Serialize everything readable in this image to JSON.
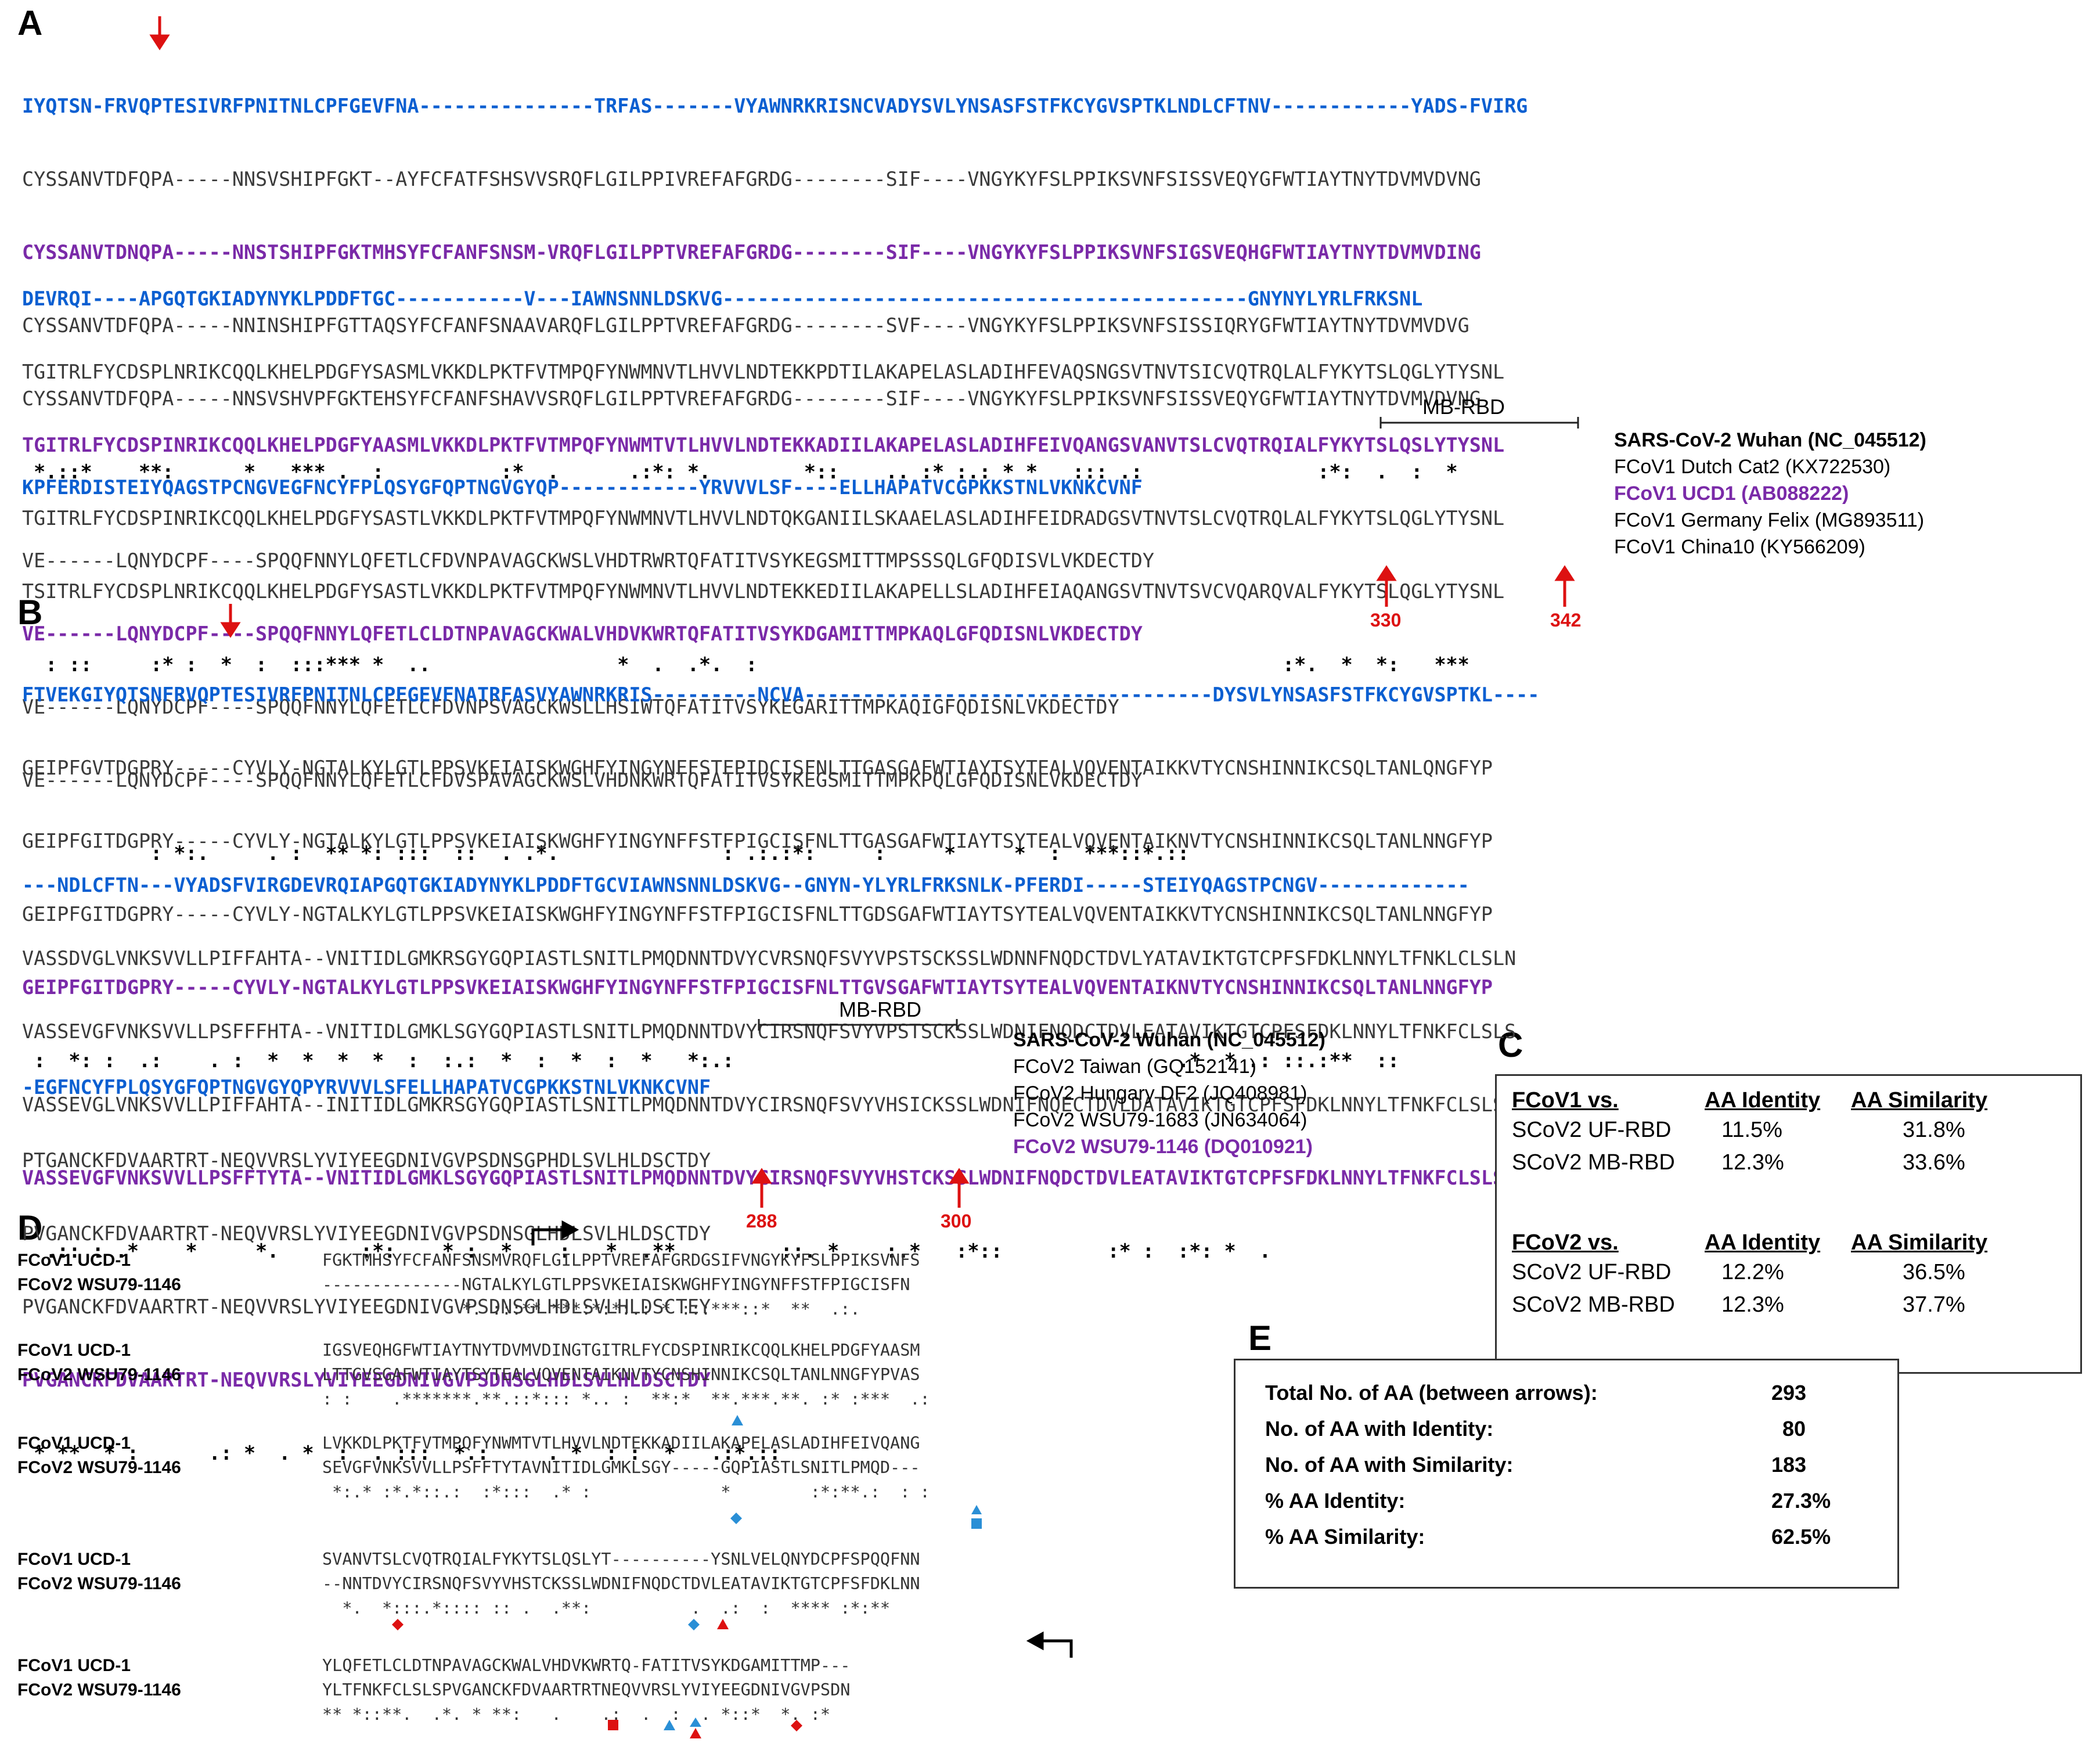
{
  "panels": {
    "A": "A",
    "B": "B",
    "C": "C",
    "D": "D",
    "E": "E"
  },
  "panelA": {
    "block1": [
      {
        "cls": "blue",
        "text": "IYQTSN-FRVQPTESIVRFPNITNLCPFGEVFNA---------------TRFAS-------VYAWNRKRISNCVADYSVLYNSASFSTFKCYGVSPTKLNDLCFTNV------------YADS-FVIRG"
      },
      {
        "cls": "gray",
        "text": "CYSSANVTDFQPA-----NNSVSHIPFGKT--AYFCFATFSHSVVSRQFLGILPPIVREFAFGRDG--------SIF----VNGYKYFSLPPIKSVNFSISSVEQYGFWTIAYTNYTDVMVDVNG"
      },
      {
        "cls": "purple",
        "text": "CYSSANVTDNQPA-----NNSTSHIPFGKTMHSYFCFANFSNSM-VRQFLGILPPTVREFAFGRDG--------SIF----VNGYKYFSLPPIKSVNFSIGSVEQHGFWTIAYTNYTDVMVDING"
      },
      {
        "cls": "gray",
        "text": "CYSSANVTDFQPA-----NNINSHIPFGTTAQSYFCFANFSNAAVARQFLGILPPTVREFAFGRDG--------SVF----VNGYKYFSLPPIKSVNFSISSIQRYGFWTIAYTNYTDVMVDVG"
      },
      {
        "cls": "gray",
        "text": "CYSSANVTDFQPA-----NNSVSHVPFGKTEHSYFCFANFSHAVVSRQFLGILPPTVREFAFGRDG--------SIF----VNGYKYFSLPPIKSVNFSISSVEQYGFWTIAYTNYTDVMVDVNG"
      },
      {
        "cls": "cons",
        "text": " *.::*    **:      *   *** .  :          :*  .      .:*: *.        *::    .. :* :.: * *   ::: .:               :*:  .  :  *"
      }
    ],
    "block2": [
      {
        "cls": "blue",
        "text": "DEVRQI----APGQTGKIADYNYKLPDDFTGC-----------V---IAWNSNNLDSKVG---------------------------------------------GNYNYLYRLFRKSNL"
      },
      {
        "cls": "gray",
        "text": "TGITRLFYCDSPLNRIKCQQLKHELPDGFYSASMLVKKDLPKTFVTMPQFYNWMNVTLHVVLNDTEKKPDTILAKAPELASLADIHFEVAQSNGSVTNVTSICVQTRQLALFYKYTSLQGLYTYSNL"
      },
      {
        "cls": "purple",
        "text": "TGITRLFYCDSPINRIKCQQLKHELPDGFYAASMLVKKDLPKTFVTMPQFYNWMTVTLHVVLNDTEKKADIILAKAPELASLADIHFEIVQANGSVANVTSLCVQTRQIALFYKYTSLQSLYTYSNL"
      },
      {
        "cls": "gray",
        "text": "TGITRLFYCDSPINRIKCQQLKHELPDGFYSASTLVKKDLPKTFVTMPQFYNWMNVTLHVVLNDTQKGANIILSKAAELASLADIHFEIDRADGSVTNVTSLCVQTRQLALFYKYTSLQGLYTYSNL"
      },
      {
        "cls": "gray",
        "text": "TSITRLFYCDSPLNRIKCQQLKHELPDGFYSASTLVKKDLPKTFVTMPQFYNWMNVTLHVVLNDTEKKEDIILAKAPELLSLADIHFEIAQANGSVTNVTSVCVQARQVALFYKYTSLQGLYTYSNL"
      },
      {
        "cls": "cons",
        "text": "  : ::     :* :  *  :  :::*** *  ..                *  .  .*.  :                                             :*.  *  *:   ***"
      }
    ],
    "block3": [
      {
        "cls": "blue",
        "text": "KPFERDISTEIYQAGSTPCNGVEGFNCYFPLQSYGFQPTNGVGYQP------------YRVVVLSF----ELLHAPATVCGPKKSTNLVKNKCVNF"
      },
      {
        "cls": "gray",
        "text": "VE------LQNYDCPF----SPQQFNNYLQFETLCFDVNPAVAGCKWSLVHDTRWRTQFATITVSYKEGSMITTMPSSSQLGFQDISVLVKDECTDY"
      },
      {
        "cls": "purple",
        "text": "VE------LQNYDCPF----SPQQFNNYLQFETLCLDTNPAVAGCKWALVHDVKWRTQFATITVSYKDGAMITTMPKAQLGFQDISNLVKDECTDY"
      },
      {
        "cls": "gray",
        "text": "VE------LQNYDCPF----SPQQFNNYLQFETLCFDVNPSVAGCKWSLLHSIWTQFATITVSYKEGARITTMPKAQIGFQDISNLVKDECTDY"
      },
      {
        "cls": "gray",
        "text": "VE------LQNYDCPF----SPQQFNNYLQFETLCFDVSPAVAGCKWSLVHDNKWRTQFATITVSYKEGSMITTMPKPQLGFQDISNLVKDECTDY"
      },
      {
        "cls": "cons",
        "text": "           : *:.     . :  ** *: :::  ::  . .*.              : .:.:*:     :     *     *  :  ***::*.::"
      }
    ],
    "legend": [
      {
        "cls": "bold",
        "text": "SARS-CoV-2 Wuhan (NC_045512)"
      },
      {
        "cls": "",
        "text": "FCoV1 Dutch Cat2 (KX722530)"
      },
      {
        "cls": "pur",
        "text": "FCoV1 UCD1 (AB088222)"
      },
      {
        "cls": "",
        "text": "FCoV1 Germany Felix (MG893511)"
      },
      {
        "cls": "",
        "text": "FCoV1 China10 (KY566209)"
      }
    ],
    "mbrbd": "MB-RBD",
    "arrow_labels": [
      "330",
      "342"
    ]
  },
  "panelB": {
    "block1": [
      {
        "cls": "blue",
        "text": "FTVEKGIYQTSNFRVQPTESIVRFPNITNLCPFGEVFNATRFASVYAWNRKRIS---------NCVA-----------------------------------DYSVLYNSASFSTFKCYGVSPTKL----"
      },
      {
        "cls": "gray",
        "text": "GEIPFGVTDGPRY-----CYVLY-NGTALKYLGTLPPSVKEIAISKWGHFYINGYNFFSTFPIDCISFNLTTGASGAFWTIAYTSYTEALVQVENTAIKKVTYCNSHINNIKCSQLTANLQNGFYP"
      },
      {
        "cls": "gray",
        "text": "GEIPFGITDGPRY-----CYVLY-NGTALKYLGTLPPSVKEIAISKWGHFYINGYNFFSTFPIGCISFNLTTGASGAFWTIAYTSYTEALVQVENTAIKNVTYCNSHINNIKCSQLTANLNNGFYP"
      },
      {
        "cls": "gray",
        "text": "GEIPFGITDGPRY-----CYVLY-NGTALKYLGTLPPSVKEIAISKWGHFYINGYNFFSTFPIGCISFNLTTGDSGAFWTIAYTSYTEALVQVENTAIKKVTYCNSHINNIKCSQLTANLNNGFYP"
      },
      {
        "cls": "purple",
        "text": "GEIPFGITDGPRY-----CYVLY-NGTALKYLGTLPPSVKEIAISKWGHFYINGYNFFSTFPIGCISFNLTTGVSGAFWTIAYTSYTEALVQVENTAIKNVTYCNSHINNIKCSQLTANLNNGFYP"
      },
      {
        "cls": "cons",
        "text": " :  *: :  .:    . :  *  *  *  *  :  :.:  *  :  *  :  *   *:.:                                      .*  * .: ::.:**  ::"
      }
    ],
    "block2": [
      {
        "cls": "blue",
        "text": "---NDLCFTN---VYADSFVIRGDEVRQIAPGQTGKIADYNYKLPDDFTGCVIAWNSNNLDSKVG--GNYN-YLYRLFRKSNLK-PFERDI-----STEIYQAGSTPCNGV-------------"
      },
      {
        "cls": "gray",
        "text": "VASSDVGLVNKSVVLLPIFFAHTA--VNITIDLGMKRSGYGQPIASTLSNITLPMQDNNTDVYCVRSNQFSVYVPSTSCKSSLWDNNFNQDCTDVLYATAVIKTGTCPFSFDKLNNYLTFNKLCLSLN"
      },
      {
        "cls": "gray",
        "text": "VASSEVGFVNKSVVLLPSFFFHTA--VNITIDLGMKLSGYGQPIASTLSNITLPMQDNNTDVYCIRSNQFSVYVPSTSCKSSLWDNIFNQDCTDVLEATAVIKTGTCPFSFDKLNNYLTFNKFCLSLS"
      },
      {
        "cls": "gray",
        "text": "VASSEVGLVNKSVVLLPIFFAHTA--INITIDLGMKRSGYGQPIASTLSNITLPMQDNNTDVYCIRSNQFSVYVHSICKSSLWDNIFNQECTDVLDATAVIKTGTCPFSFDKLNNYLTFNKFCLSLS"
      },
      {
        "cls": "purple",
        "text": "VASSEVGFVNKSVVLLPSFFTYTA--VNITIDLGMKLSGYGQPIASTLSNITLPMQDNNTDVYCIRSNQFSVYVHSTCKSSLWDNIFNQDCTDVLEATAVIKTGTCPFSFDKLNNYLTFNKFCLSLS"
      },
      {
        "cls": "cons",
        "text": "  .:: : .*    *     *.       :*:    * :  *    :   *  .**         ::. *    :.*   :*::         :* :  :*: *  ."
      }
    ],
    "block3": [
      {
        "cls": "blue",
        "text": "-EGFNCYFPLQSYGFQPTNGVGYQPYRVVVLSFELLHAPATVCGPKKSTNLVKNKCVNF"
      },
      {
        "cls": "gray",
        "text": "PTGANCKFDVAARTRT-NEQVVRSLYVIYEEGDNIVGVPSDNSGPHDLSVLHLDSCTDY"
      },
      {
        "cls": "gray",
        "text": "PVGANCKFDVAARTRT-NEQVVRSLYVIYEEGDNIVGVPSDNSGLHDLSVLHLDSCTDY"
      },
      {
        "cls": "gray",
        "text": "PVGANCKFDVAARTRT-NEQVVRSLYVIYEEGDNIVGVPSDNSGLHDLSVLHLDSCTEY"
      },
      {
        "cls": "purple",
        "text": "PVGANCKFDVAARTRT-NEQVVRSLYVIYEEGDNIVGVPSDNSGLHDLSVLHLDSCTDY"
      },
      {
        "cls": "cons",
        "text": " * **  * :      .: *  . *  :  . :::  *.:     . *  : :  *   .:*.::"
      }
    ],
    "legend": [
      {
        "cls": "bold",
        "text": "SARS-CoV-2 Wuhan (NC_045512)"
      },
      {
        "cls": "",
        "text": "FCoV2 Taiwan (GQ152141)"
      },
      {
        "cls": "",
        "text": "FCoV2 Hungary DF2 (JQ408981)"
      },
      {
        "cls": "",
        "text": "FCoV2 WSU79-1683 (JN634064)"
      },
      {
        "cls": "pur",
        "text": "FCoV2 WSU79-1146 (DQ010921)"
      }
    ],
    "mbrbd": "MB-RBD",
    "arrow_labels": [
      "288",
      "300"
    ]
  },
  "panelC": {
    "t1": {
      "h1": "FCoV1 vs.",
      "h2": "AA Identity",
      "h3": "AA Similarity",
      "rows": [
        [
          "SCoV2 UF-RBD",
          "11.5%",
          "31.8%"
        ],
        [
          "SCoV2 MB-RBD",
          "12.3%",
          "33.6%"
        ]
      ]
    },
    "t2": {
      "h1": "FCoV2 vs.",
      "h2": "AA Identity",
      "h3": "AA Similarity",
      "rows": [
        [
          "SCoV2 UF-RBD",
          "12.2%",
          "36.5%"
        ],
        [
          "SCoV2 MB-RBD",
          "12.3%",
          "37.7%"
        ]
      ]
    }
  },
  "panelD": {
    "name1": "FCoV1 UCD-1",
    "name2": "FCoV2 WSU79-1146",
    "blocks": [
      {
        "s1": "FGKTMHSYFCFANFSNSMVRQFLGILPPTVREFAFGRDGSIFVNGYKYFSLPPIKSVNFS",
        "s2": "--------------NGTALKYLGTLPPSVKEIAISKWGHFYINGYNFFSTFPIGCISFN",
        "c": "              *. :::** ***:*:*:.: * :::***::*  **  .:."
      },
      {
        "s1": "IGSVEQHGFWTIAYTNYTDVMVDINGTGITRLFYCDSPINRIKCQQLKHELPDGFYAASM",
        "s2": "LTTGVSGAFWTIAYTSYTEALVQVENTAIKNVTYCNSHINNIKCSQLTANLNNGFYPVAS",
        "c": ": :    .*******.**.::*::: *.. :  **:*  **.***.**. :* :***  .:"
      },
      {
        "s1": "LVKKDLPKTFVTMPQFYNWMTVTLHVVLNDTEKKADIILAKAPELASLADIHFEIVQANG",
        "s2": "SEVGFVNKSVVLLPSFFTYTAVNITIDLGMKLSGY-----GQPIASTLSNITLPMQD---",
        "c": " *:.* :*.*::.:  :*:::  .* :             *        :*:**.:  : :"
      },
      {
        "s1": "SVANVTSLCVQTRQIALFYKYTSLQSLYT----------YSNLVELQNYDCPFSPQQFNN",
        "s2": "--NNTDVYCIRSNQFSVYVHSTCKSSLWDNIFNQDCTDVLEATAVIKTGTCPFSFDKLNN",
        "c": "  *.  *:::.*:::: :: .  .**:          .  .:  :  **** :*:**"
      },
      {
        "s1": "YLQFETLCLDTNPAVAGCKWALVHDVKWRTQ-FATITVSYKDGAMITTMP---",
        "s2": "YLTFNKFCLSLSPVGANCKFDVAARTRTNEQVVRSLYVIYEEGDNIVGVPSDN",
        "c": "** *::**.  .*. * **:   .    .:  .  :  . *::*  *. :*"
      }
    ]
  },
  "panelE": {
    "rows": [
      [
        "Total No. of AA (between arrows):",
        "293"
      ],
      [
        "No. of AA with Identity:",
        "80"
      ],
      [
        "No. of AA with Similarity:",
        "183"
      ],
      [
        "% AA Identity:",
        "27.3%"
      ],
      [
        "% AA Similarity:",
        "62.5%"
      ]
    ]
  }
}
